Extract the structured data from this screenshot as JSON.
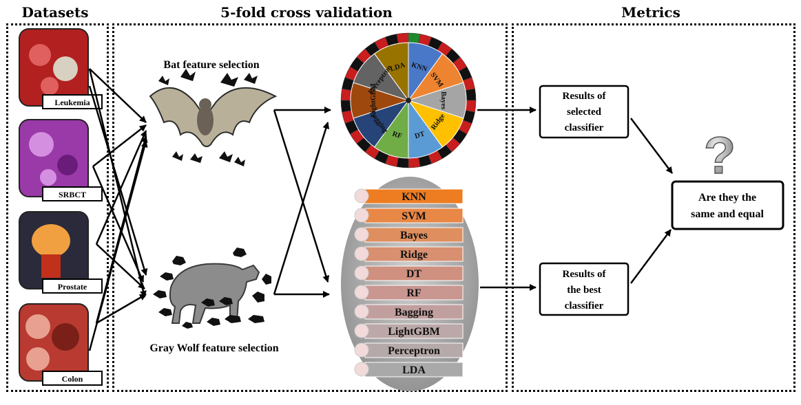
{
  "headers": {
    "datasets": "Datasets",
    "cross_validation": "5-fold cross validation",
    "metrics": "Metrics"
  },
  "datasets": [
    {
      "label": "Leukemia",
      "colors": [
        "#b32020",
        "#e06060",
        "#d8d0c0"
      ]
    },
    {
      "label": "SRBCT",
      "colors": [
        "#9a3aa8",
        "#d58fe0",
        "#6a1c7a"
      ]
    },
    {
      "label": "Prostate",
      "colors": [
        "#2a2a3a",
        "#f0a040",
        "#c0301a"
      ]
    },
    {
      "label": "Colon",
      "colors": [
        "#b83a30",
        "#e8a090",
        "#7a2018"
      ]
    }
  ],
  "feature_selection": {
    "bat": "Bat feature selection",
    "wolf": "Gray Wolf feature selection"
  },
  "wheel_segments": [
    {
      "label": "KNN",
      "color": "#4a78c8"
    },
    {
      "label": "SVM",
      "color": "#ee8430"
    },
    {
      "label": "Bayes",
      "color": "#a5a5a5"
    },
    {
      "label": "Ridge",
      "color": "#ffc000"
    },
    {
      "label": "DT",
      "color": "#5b9bd5"
    },
    {
      "label": "RF",
      "color": "#70ad47"
    },
    {
      "label": "Bagging",
      "color": "#264478"
    },
    {
      "label": "LightGBM",
      "color": "#9e480e"
    },
    {
      "label": "Perceptron",
      "color": "#636363"
    },
    {
      "label": "LDA",
      "color": "#997300"
    }
  ],
  "classifier_list": [
    "KNN",
    "SVM",
    "Bayes",
    "Ridge",
    "DT",
    "RF",
    "Bagging",
    "LightGBM",
    "Perceptron",
    "LDA"
  ],
  "list_colors": [
    "#ee7d22",
    "#e88746",
    "#df8f5f",
    "#d89070",
    "#d09080",
    "#c99690",
    "#c29f9f",
    "#bca8a8",
    "#b6a9a9",
    "#a9a9a9"
  ],
  "results": {
    "selected": [
      "Results of",
      "selected",
      "classifier"
    ],
    "best": [
      "Results of",
      "the best",
      "classifier"
    ]
  },
  "question": {
    "mark": "?",
    "lines": [
      "Are they the",
      "same and equal"
    ]
  }
}
